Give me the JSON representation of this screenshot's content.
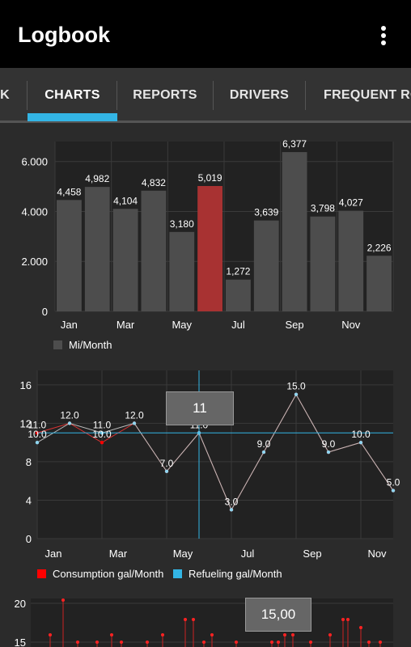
{
  "app": {
    "title": "Logbook"
  },
  "tabs": [
    {
      "label": "K"
    },
    {
      "label": "CHARTS",
      "selected": true
    },
    {
      "label": "REPORTS"
    },
    {
      "label": "DRIVERS"
    },
    {
      "label": "FREQUENT RO"
    }
  ],
  "colors": {
    "accent": "#33b5e5",
    "bar": "#4d4d4d",
    "highlight": "#a83232",
    "consumption": "#ff0000",
    "refueling": "#33b5e5"
  },
  "icons": {
    "overflow": "overflow-menu-icon"
  },
  "chart_data": [
    {
      "type": "bar",
      "categories": [
        "Jan",
        "Feb",
        "Mar",
        "Apr",
        "May",
        "Jun",
        "Jul",
        "Aug",
        "Sep",
        "Oct",
        "Nov",
        "Dec"
      ],
      "x_tick_labels": [
        "Jan",
        "Mar",
        "May",
        "Jul",
        "Sep",
        "Nov"
      ],
      "values": [
        4458,
        4982,
        4104,
        4832,
        3180,
        5019,
        1272,
        3639,
        6377,
        3798,
        4027,
        2226
      ],
      "value_labels": [
        "4,458",
        "4,982",
        "4,104",
        "4,832",
        "3,180",
        "5,019",
        "1,272",
        "3,639",
        "6,377",
        "3,798",
        "4,027",
        "2,226"
      ],
      "highlighted_index": 5,
      "y_tick_labels": [
        "0",
        "2.000",
        "4.000",
        "6.000"
      ],
      "y_ticks": [
        0,
        2000,
        4000,
        6000
      ],
      "ylim": [
        0,
        6800
      ],
      "legend": [
        {
          "name": "Mi/Month",
          "color": "#4d4d4d"
        }
      ]
    },
    {
      "type": "line",
      "categories": [
        "Jan",
        "Feb",
        "Mar",
        "Apr",
        "May",
        "Jun",
        "Jul",
        "Aug",
        "Sep",
        "Oct",
        "Nov",
        "Dec"
      ],
      "x_tick_labels": [
        "Jan",
        "Mar",
        "May",
        "Jul",
        "Sep",
        "Nov"
      ],
      "y_ticks": [
        0,
        4,
        8,
        12,
        16
      ],
      "ylim": [
        0,
        17.5
      ],
      "series": [
        {
          "name": "Consumption gal/Month",
          "color": "#ff0000",
          "values": [
            11.0,
            12.0,
            10.0,
            12.0,
            7.0,
            11.0,
            3.0,
            9.0,
            15.0,
            9.0,
            10.0,
            5.0
          ]
        },
        {
          "name": "Refueling gal/Month",
          "color": "#33b5e5",
          "values": [
            10.0,
            12.0,
            11.0,
            12.0,
            7.0,
            11.0,
            3.0,
            9.0,
            15.0,
            9.0,
            10.0,
            5.0
          ]
        }
      ],
      "point_labels": [
        {
          "x": "Jan",
          "text": "11.0"
        },
        {
          "x": "Jan",
          "text": "10.0"
        },
        {
          "x": "Feb",
          "text": "12.0"
        },
        {
          "x": "Mar",
          "text": "11.0"
        },
        {
          "x": "Mar",
          "text": "10.0"
        },
        {
          "x": "Apr",
          "text": "12.0"
        },
        {
          "x": "May",
          "text": "7.0"
        },
        {
          "x": "Jun",
          "text": "11.0"
        },
        {
          "x": "Jul",
          "text": "3.0"
        },
        {
          "x": "Aug",
          "text": "9.0"
        },
        {
          "x": "Sep",
          "text": "15.0"
        },
        {
          "x": "Oct",
          "text": "9.0"
        },
        {
          "x": "Nov",
          "text": "10.0"
        },
        {
          "x": "Dec",
          "text": "5.0"
        }
      ],
      "crosshair": {
        "x": "Jun",
        "y": 11
      },
      "tooltip": "11"
    },
    {
      "type": "scatter",
      "y_tick_labels": [
        "20",
        "15"
      ],
      "tooltip": "15,00"
    }
  ]
}
